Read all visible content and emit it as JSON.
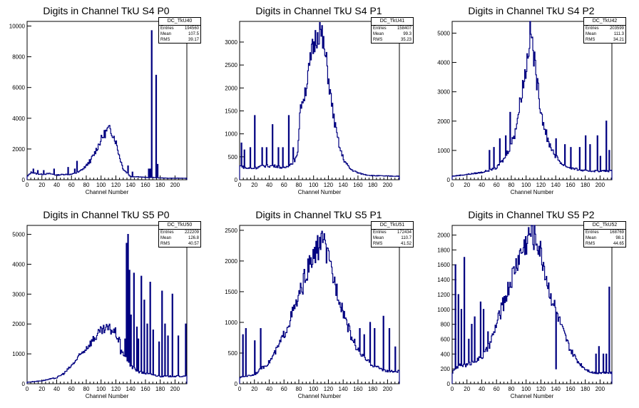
{
  "chart_data": [
    {
      "type": "histogram",
      "title": "Digits in Channel TkU S4 P0",
      "xlabel": "Channel Number",
      "xlim": [
        0,
        216
      ],
      "ylim": [
        0,
        10300
      ],
      "xticks": [
        0,
        20,
        40,
        60,
        80,
        100,
        120,
        140,
        160,
        180,
        200
      ],
      "yticks": [
        0,
        2000,
        4000,
        6000,
        8000,
        10000
      ],
      "stats": {
        "name": "DC_TkU40",
        "entries_label": "Entries",
        "entries": "194560",
        "mean_label": "Mean",
        "mean": "107.5",
        "rms_label": "RMS",
        "rms": "39.17"
      },
      "profile": [
        [
          0,
          200
        ],
        [
          6,
          500
        ],
        [
          12,
          400
        ],
        [
          20,
          350
        ],
        [
          30,
          400
        ],
        [
          40,
          300
        ],
        [
          50,
          350
        ],
        [
          60,
          350
        ],
        [
          70,
          500
        ],
        [
          80,
          900
        ],
        [
          90,
          1600
        ],
        [
          100,
          2600
        ],
        [
          105,
          3000
        ],
        [
          110,
          3300
        ],
        [
          115,
          3100
        ],
        [
          120,
          2500
        ],
        [
          125,
          1500
        ],
        [
          130,
          700
        ],
        [
          140,
          200
        ],
        [
          150,
          200
        ],
        [
          160,
          150
        ],
        [
          170,
          150
        ],
        [
          180,
          120
        ],
        [
          190,
          100
        ],
        [
          200,
          100
        ],
        [
          215,
          100
        ]
      ],
      "spikes": [
        [
          8,
          700
        ],
        [
          14,
          600
        ],
        [
          22,
          600
        ],
        [
          36,
          700
        ],
        [
          55,
          800
        ],
        [
          64,
          700
        ],
        [
          67,
          1200
        ],
        [
          76,
          700
        ],
        [
          85,
          1100
        ],
        [
          136,
          900
        ],
        [
          142,
          500
        ],
        [
          164,
          700
        ],
        [
          166,
          700
        ],
        [
          168,
          9700
        ],
        [
          174,
          6800
        ],
        [
          176,
          1000
        ]
      ]
    },
    {
      "type": "histogram",
      "title": "Digits in Channel TkU S4 P1",
      "xlabel": "Channel Number",
      "xlim": [
        0,
        216
      ],
      "ylim": [
        0,
        3450
      ],
      "xticks": [
        0,
        20,
        40,
        60,
        80,
        100,
        120,
        140,
        160,
        180,
        200
      ],
      "yticks": [
        0,
        500,
        1000,
        1500,
        2000,
        2500,
        3000
      ],
      "stats": {
        "name": "DC_TkU41",
        "entries_label": "Entries",
        "entries": "158407",
        "mean_label": "Mean",
        "mean": "99.3",
        "rms_label": "RMS",
        "rms": "35.23"
      },
      "profile": [
        [
          0,
          300
        ],
        [
          10,
          250
        ],
        [
          20,
          250
        ],
        [
          30,
          300
        ],
        [
          40,
          300
        ],
        [
          50,
          300
        ],
        [
          60,
          250
        ],
        [
          70,
          350
        ],
        [
          78,
          500
        ],
        [
          82,
          1600
        ],
        [
          88,
          1900
        ],
        [
          92,
          2200
        ],
        [
          98,
          2800
        ],
        [
          104,
          3150
        ],
        [
          108,
          3300
        ],
        [
          112,
          3050
        ],
        [
          118,
          2500
        ],
        [
          124,
          1700
        ],
        [
          130,
          1100
        ],
        [
          136,
          650
        ],
        [
          142,
          400
        ],
        [
          150,
          230
        ],
        [
          160,
          150
        ],
        [
          170,
          110
        ],
        [
          180,
          90
        ],
        [
          200,
          80
        ],
        [
          215,
          80
        ]
      ],
      "spikes": [
        [
          2,
          800
        ],
        [
          6,
          650
        ],
        [
          14,
          700
        ],
        [
          20,
          1400
        ],
        [
          30,
          700
        ],
        [
          36,
          700
        ],
        [
          44,
          1200
        ],
        [
          52,
          700
        ],
        [
          58,
          700
        ],
        [
          66,
          1400
        ],
        [
          72,
          700
        ],
        [
          84,
          1700
        ]
      ]
    },
    {
      "type": "histogram",
      "title": "Digits in Channel TkU S4 P2",
      "xlabel": "Channel Number",
      "xlim": [
        0,
        216
      ],
      "ylim": [
        0,
        5400
      ],
      "xticks": [
        0,
        20,
        40,
        60,
        80,
        100,
        120,
        140,
        160,
        180,
        200
      ],
      "yticks": [
        0,
        1000,
        2000,
        3000,
        4000,
        5000
      ],
      "stats": {
        "name": "DC_TkU42",
        "entries_label": "Entries",
        "entries": "203599",
        "mean_label": "Mean",
        "mean": "111.3",
        "rms_label": "RMS",
        "rms": "34.21"
      },
      "profile": [
        [
          0,
          120
        ],
        [
          20,
          180
        ],
        [
          40,
          250
        ],
        [
          60,
          400
        ],
        [
          70,
          700
        ],
        [
          80,
          1200
        ],
        [
          88,
          2000
        ],
        [
          94,
          3000
        ],
        [
          100,
          3800
        ],
        [
          104,
          4700
        ],
        [
          106,
          5200
        ],
        [
          110,
          4300
        ],
        [
          116,
          3100
        ],
        [
          122,
          2100
        ],
        [
          130,
          1300
        ],
        [
          140,
          800
        ],
        [
          150,
          500
        ],
        [
          160,
          400
        ],
        [
          170,
          350
        ],
        [
          180,
          300
        ],
        [
          190,
          300
        ],
        [
          200,
          300
        ],
        [
          215,
          300
        ]
      ],
      "spikes": [
        [
          50,
          1000
        ],
        [
          56,
          1100
        ],
        [
          64,
          1400
        ],
        [
          72,
          1500
        ],
        [
          78,
          2300
        ],
        [
          84,
          1400
        ],
        [
          128,
          1300
        ],
        [
          140,
          1400
        ],
        [
          152,
          1200
        ],
        [
          160,
          1100
        ],
        [
          172,
          1100
        ],
        [
          180,
          1500
        ],
        [
          186,
          1200
        ],
        [
          196,
          1500
        ],
        [
          200,
          800
        ],
        [
          208,
          2000
        ],
        [
          212,
          1000
        ]
      ]
    },
    {
      "type": "histogram",
      "title": "Digits in Channel TkU S5 P0",
      "xlabel": "Channel Number",
      "xlim": [
        0,
        216
      ],
      "ylim": [
        0,
        5300
      ],
      "xticks": [
        0,
        20,
        40,
        60,
        80,
        100,
        120,
        140,
        160,
        180,
        200
      ],
      "yticks": [
        0,
        1000,
        2000,
        3000,
        4000,
        5000
      ],
      "stats": {
        "name": "DC_TkU50",
        "entries_label": "Entries",
        "entries": "222209",
        "mean_label": "Mean",
        "mean": "126.8",
        "rms_label": "RMS",
        "rms": "40.57"
      },
      "profile": [
        [
          0,
          50
        ],
        [
          20,
          100
        ],
        [
          40,
          200
        ],
        [
          50,
          350
        ],
        [
          60,
          600
        ],
        [
          70,
          900
        ],
        [
          80,
          1200
        ],
        [
          90,
          1500
        ],
        [
          100,
          1750
        ],
        [
          110,
          1850
        ],
        [
          115,
          1800
        ],
        [
          120,
          1700
        ],
        [
          125,
          1400
        ],
        [
          130,
          1000
        ],
        [
          140,
          600
        ],
        [
          150,
          400
        ],
        [
          160,
          350
        ],
        [
          170,
          300
        ],
        [
          180,
          250
        ],
        [
          190,
          250
        ],
        [
          200,
          250
        ],
        [
          215,
          250
        ]
      ],
      "spikes": [
        [
          126,
          1000
        ],
        [
          132,
          1500
        ],
        [
          134,
          4700
        ],
        [
          136,
          5000
        ],
        [
          138,
          3800
        ],
        [
          140,
          2300
        ],
        [
          144,
          3700
        ],
        [
          148,
          1900
        ],
        [
          150,
          1500
        ],
        [
          154,
          3600
        ],
        [
          158,
          2800
        ],
        [
          162,
          2000
        ],
        [
          166,
          3400
        ],
        [
          170,
          1800
        ],
        [
          178,
          1400
        ],
        [
          182,
          3100
        ],
        [
          186,
          2000
        ],
        [
          190,
          1600
        ],
        [
          196,
          3000
        ],
        [
          204,
          1600
        ],
        [
          214,
          2000
        ]
      ]
    },
    {
      "type": "histogram",
      "title": "Digits in Channel TkU S5 P1",
      "xlabel": "Channel Number",
      "xlim": [
        0,
        216
      ],
      "ylim": [
        0,
        2580
      ],
      "xticks": [
        0,
        20,
        40,
        60,
        80,
        100,
        120,
        140,
        160,
        180,
        200
      ],
      "yticks": [
        0,
        500,
        1000,
        1500,
        2000,
        2500
      ],
      "stats": {
        "name": "DC_TkU51",
        "entries_label": "Entries",
        "entries": "172434",
        "mean_label": "Mean",
        "mean": "110.7",
        "rms_label": "RMS",
        "rms": "41.52"
      },
      "profile": [
        [
          0,
          100
        ],
        [
          20,
          150
        ],
        [
          30,
          250
        ],
        [
          40,
          350
        ],
        [
          50,
          550
        ],
        [
          60,
          800
        ],
        [
          70,
          1100
        ],
        [
          80,
          1400
        ],
        [
          90,
          1800
        ],
        [
          100,
          2050
        ],
        [
          105,
          2200
        ],
        [
          110,
          2300
        ],
        [
          115,
          2250
        ],
        [
          120,
          2000
        ],
        [
          130,
          1600
        ],
        [
          140,
          1200
        ],
        [
          150,
          800
        ],
        [
          160,
          550
        ],
        [
          170,
          400
        ],
        [
          180,
          300
        ],
        [
          190,
          250
        ],
        [
          200,
          200
        ],
        [
          215,
          200
        ]
      ],
      "spikes": [
        [
          4,
          800
        ],
        [
          8,
          900
        ],
        [
          20,
          700
        ],
        [
          28,
          900
        ],
        [
          110,
          2450
        ],
        [
          112,
          2300
        ],
        [
          162,
          900
        ],
        [
          168,
          800
        ],
        [
          176,
          1000
        ],
        [
          182,
          900
        ],
        [
          194,
          1100
        ],
        [
          202,
          900
        ],
        [
          210,
          600
        ]
      ]
    },
    {
      "type": "histogram",
      "title": "Digits in Channel TkU S5 P2",
      "xlabel": "Channel Number",
      "xlim": [
        0,
        216
      ],
      "ylim": [
        0,
        2130
      ],
      "xticks": [
        0,
        20,
        40,
        60,
        80,
        100,
        120,
        140,
        160,
        180,
        200
      ],
      "yticks": [
        0,
        200,
        400,
        600,
        800,
        1000,
        1200,
        1400,
        1600,
        1800,
        2000
      ],
      "stats": {
        "name": "DC_TkU52",
        "entries_label": "Entries",
        "entries": "168769",
        "mean_label": "Mean",
        "mean": "98.1",
        "rms_label": "RMS",
        "rms": "44.65"
      },
      "profile": [
        [
          0,
          150
        ],
        [
          10,
          250
        ],
        [
          20,
          250
        ],
        [
          30,
          300
        ],
        [
          40,
          350
        ],
        [
          50,
          500
        ],
        [
          60,
          800
        ],
        [
          70,
          1100
        ],
        [
          80,
          1400
        ],
        [
          90,
          1700
        ],
        [
          100,
          1900
        ],
        [
          106,
          2050
        ],
        [
          110,
          2000
        ],
        [
          116,
          1900
        ],
        [
          124,
          1600
        ],
        [
          130,
          1300
        ],
        [
          140,
          1000
        ],
        [
          150,
          700
        ],
        [
          160,
          450
        ],
        [
          170,
          300
        ],
        [
          180,
          200
        ],
        [
          190,
          150
        ],
        [
          200,
          150
        ],
        [
          215,
          150
        ]
      ],
      "spikes": [
        [
          4,
          1600
        ],
        [
          8,
          1200
        ],
        [
          12,
          1000
        ],
        [
          16,
          1700
        ],
        [
          22,
          600
        ],
        [
          26,
          800
        ],
        [
          30,
          900
        ],
        [
          38,
          1100
        ],
        [
          42,
          1000
        ],
        [
          48,
          700
        ],
        [
          56,
          700
        ],
        [
          140,
          200
        ],
        [
          194,
          400
        ],
        [
          198,
          500
        ],
        [
          204,
          400
        ],
        [
          208,
          400
        ],
        [
          212,
          1300
        ]
      ]
    }
  ]
}
